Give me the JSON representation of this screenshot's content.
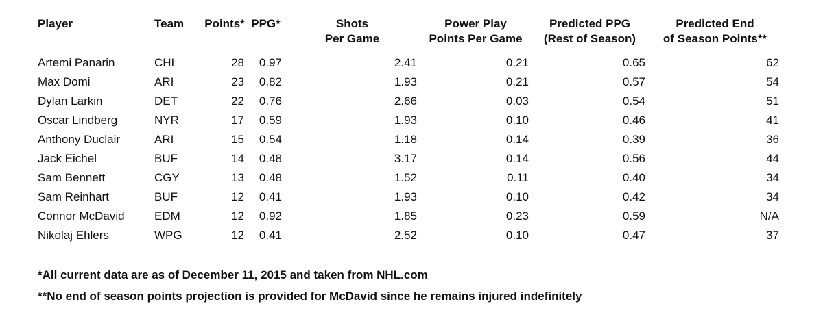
{
  "chart_data": {
    "type": "table",
    "columns": [
      {
        "id": "player",
        "label_line1": "Player",
        "label_line2": ""
      },
      {
        "id": "team",
        "label_line1": "Team",
        "label_line2": ""
      },
      {
        "id": "points",
        "label_line1": "Points*",
        "label_line2": ""
      },
      {
        "id": "ppg",
        "label_line1": "PPG*",
        "label_line2": ""
      },
      {
        "id": "shots-per-game",
        "label_line1": "Shots",
        "label_line2": "Per Game"
      },
      {
        "id": "pp-points-per-game",
        "label_line1": "Power Play",
        "label_line2": "Points Per Game"
      },
      {
        "id": "predicted-ppg",
        "label_line1": "Predicted PPG",
        "label_line2": "(Rest of Season)"
      },
      {
        "id": "predicted-end-points",
        "label_line1": "Predicted End",
        "label_line2": "of Season Points**"
      }
    ],
    "rows": [
      [
        "Artemi Panarin",
        "CHI",
        "28",
        "0.97",
        "2.41",
        "0.21",
        "0.65",
        "62"
      ],
      [
        "Max Domi",
        "ARI",
        "23",
        "0.82",
        "1.93",
        "0.21",
        "0.57",
        "54"
      ],
      [
        "Dylan Larkin",
        "DET",
        "22",
        "0.76",
        "2.66",
        "0.03",
        "0.54",
        "51"
      ],
      [
        "Oscar Lindberg",
        "NYR",
        "17",
        "0.59",
        "1.93",
        "0.10",
        "0.46",
        "41"
      ],
      [
        "Anthony Duclair",
        "ARI",
        "15",
        "0.54",
        "1.18",
        "0.14",
        "0.39",
        "36"
      ],
      [
        "Jack Eichel",
        "BUF",
        "14",
        "0.48",
        "3.17",
        "0.14",
        "0.56",
        "44"
      ],
      [
        "Sam Bennett",
        "CGY",
        "13",
        "0.48",
        "1.52",
        "0.11",
        "0.40",
        "34"
      ],
      [
        "Sam Reinhart",
        "BUF",
        "12",
        "0.41",
        "1.93",
        "0.10",
        "0.42",
        "34"
      ],
      [
        "Connor McDavid",
        "EDM",
        "12",
        "0.92",
        "1.85",
        "0.23",
        "0.59",
        "N/A"
      ],
      [
        "Nikolaj Ehlers",
        "WPG",
        "12",
        "0.41",
        "2.52",
        "0.10",
        "0.47",
        "37"
      ]
    ],
    "footnotes": [
      "*All current data are as of December 11, 2015 and taken from NHL.com",
      "**No end of season points projection is provided for McDavid since he remains injured indefinitely"
    ],
    "text_color": "#111111",
    "background_color": "#ffffff"
  }
}
